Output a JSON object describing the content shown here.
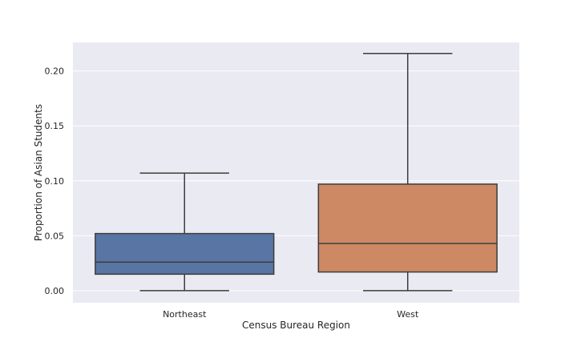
{
  "chart_data": {
    "type": "box",
    "xlabel": "Census Bureau Region",
    "ylabel": "Proportion of Asian Students",
    "ylim": [
      -0.011,
      0.226
    ],
    "yticks": [
      "0.00",
      "0.05",
      "0.10",
      "0.15",
      "0.20"
    ],
    "categories": [
      "Northeast",
      "West"
    ],
    "boxes": [
      {
        "category": "Northeast",
        "whisker_low": 0.0,
        "q1": 0.015,
        "median": 0.026,
        "q3": 0.052,
        "whisker_high": 0.107,
        "color": "#5975a4"
      },
      {
        "category": "West",
        "whisker_low": 0.0,
        "q1": 0.017,
        "median": 0.043,
        "q3": 0.097,
        "whisker_high": 0.216,
        "color": "#cc8963"
      }
    ],
    "grid": true,
    "background": "#eaeaf2",
    "line_color": "#3d3d3d"
  }
}
